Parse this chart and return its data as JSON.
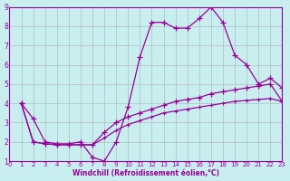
{
  "xlabel": "Windchill (Refroidissement éolien,°C)",
  "xlim": [
    0,
    23
  ],
  "ylim": [
    1,
    9
  ],
  "xticks": [
    0,
    1,
    2,
    3,
    4,
    5,
    6,
    7,
    8,
    9,
    10,
    11,
    12,
    13,
    14,
    15,
    16,
    17,
    18,
    19,
    20,
    21,
    22,
    23
  ],
  "yticks": [
    1,
    2,
    3,
    4,
    5,
    6,
    7,
    8,
    9
  ],
  "line_color": "#990099",
  "bg_color": "#c8eef0",
  "grid_color": "#aaaaaa",
  "line1_x": [
    1,
    2,
    3,
    4,
    5,
    6,
    7,
    8,
    9,
    10,
    11,
    12,
    13,
    14,
    15,
    16,
    17,
    18,
    19,
    20,
    21,
    22,
    23
  ],
  "line1_y": [
    4.0,
    3.2,
    2.0,
    1.9,
    1.9,
    2.0,
    1.2,
    1.0,
    2.0,
    3.8,
    6.4,
    8.2,
    8.2,
    7.9,
    7.9,
    8.4,
    9.0,
    8.2,
    6.5,
    6.0,
    5.0,
    5.3,
    4.8
  ],
  "line2_x": [
    1,
    2,
    3,
    4,
    5,
    6,
    7,
    8,
    9,
    10,
    11,
    12,
    13,
    14,
    15,
    16,
    17,
    18,
    19,
    20,
    21,
    22,
    23
  ],
  "line2_y": [
    4.0,
    2.0,
    1.9,
    1.85,
    1.85,
    1.85,
    1.85,
    2.5,
    3.0,
    3.3,
    3.5,
    3.7,
    3.9,
    4.1,
    4.2,
    4.3,
    4.5,
    4.6,
    4.7,
    4.8,
    4.9,
    5.0,
    4.1
  ],
  "line3_x": [
    1,
    2,
    3,
    4,
    5,
    6,
    7,
    8,
    9,
    10,
    11,
    12,
    13,
    14,
    15,
    16,
    17,
    18,
    19,
    20,
    21,
    22,
    23
  ],
  "line3_y": [
    4.0,
    2.0,
    1.9,
    1.85,
    1.85,
    1.85,
    1.85,
    2.2,
    2.6,
    2.9,
    3.1,
    3.3,
    3.5,
    3.6,
    3.7,
    3.8,
    3.9,
    4.0,
    4.1,
    4.15,
    4.2,
    4.25,
    4.1
  ]
}
